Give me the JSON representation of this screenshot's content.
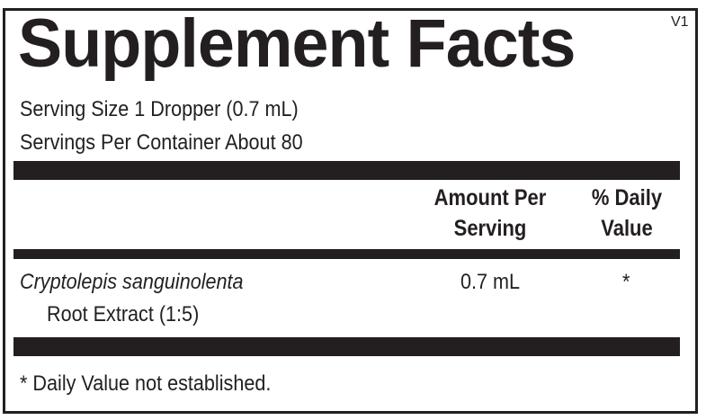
{
  "title": "Supplement Facts",
  "version": "V1",
  "serving_size": "Serving Size 1 Dropper (0.7 mL)",
  "servings_per_container": "Servings Per Container About 80",
  "header": {
    "amount_line1": "Amount Per",
    "amount_line2": "Serving",
    "dv_line1": "% Daily",
    "dv_line2": "Value"
  },
  "rows": [
    {
      "name_italic": "Cryptolepis sanguinolenta",
      "name_rest": "Root Extract (1:5)",
      "amount": "0.7 mL",
      "dv": "*"
    }
  ],
  "footnote": "* Daily Value not established."
}
